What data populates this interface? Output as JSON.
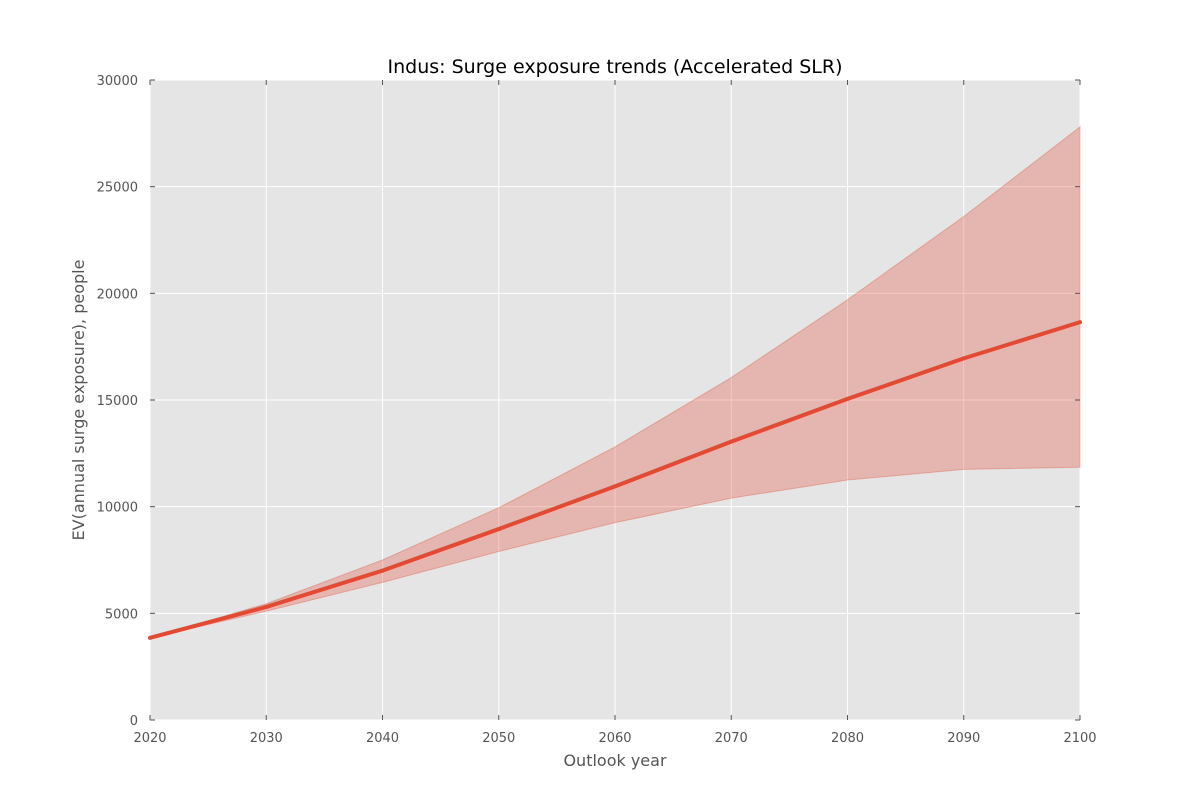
{
  "chart_data": {
    "type": "area",
    "title": "Indus: Surge exposure trends (Accelerated SLR)",
    "xlabel": "Outlook year",
    "ylabel": "EV(annual surge exposure), people",
    "x": [
      2020,
      2030,
      2040,
      2050,
      2060,
      2070,
      2080,
      2090,
      2100
    ],
    "xlim": [
      2020,
      2100
    ],
    "ylim": [
      0,
      30000
    ],
    "xticks": [
      2020,
      2030,
      2040,
      2050,
      2060,
      2070,
      2080,
      2090,
      2100
    ],
    "yticks": [
      0,
      5000,
      10000,
      15000,
      20000,
      25000,
      30000
    ],
    "grid": true,
    "series": [
      {
        "values": [
          3850,
          5300,
          7000,
          8950,
          10950,
          13050,
          15050,
          16950,
          18650
        ],
        "color": "#e24a33"
      }
    ],
    "band": {
      "lower": [
        3850,
        5100,
        6450,
        7900,
        9250,
        10400,
        11250,
        11750,
        11850
      ],
      "upper": [
        3850,
        5450,
        7500,
        9950,
        12800,
        16050,
        19700,
        23600,
        27800
      ],
      "color": "#e24a33",
      "opacity": 0.3
    },
    "background_color": "#e5e5e5",
    "grid_color": "#ffffff"
  }
}
